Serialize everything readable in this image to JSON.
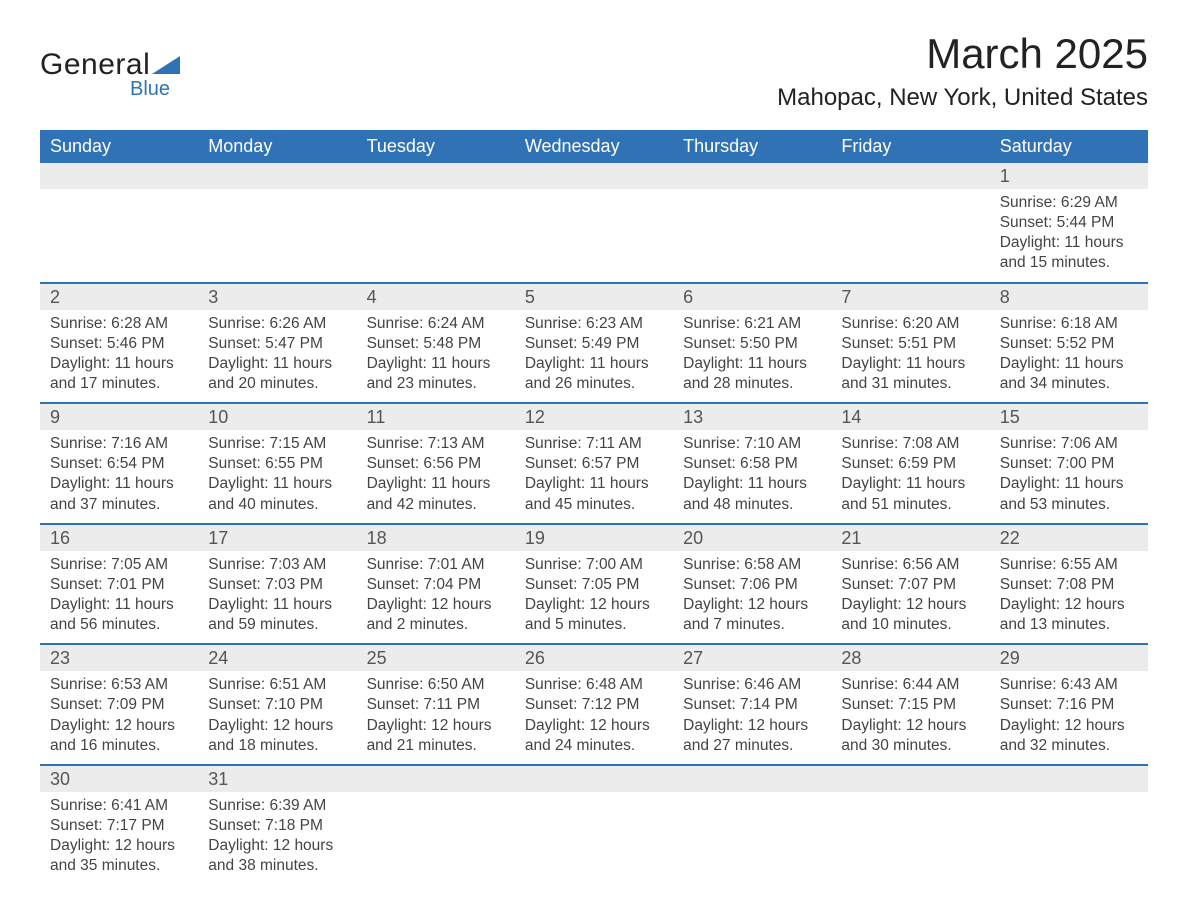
{
  "logo": {
    "top": "General",
    "bottom": "Blue",
    "shape_color": "#2f72b5",
    "text_color": "#222222"
  },
  "header": {
    "month": "March 2025",
    "location": "Mahopac, New York, United States"
  },
  "styling": {
    "header_bg": "#2f72b5",
    "header_fg": "#ffffff",
    "date_row_bg": "#ececec",
    "body_bg": "#ffffff",
    "week_divider": "#2f72b5",
    "body_fontsize": 15.5,
    "header_fontsize": 18,
    "title_fontsize": 42,
    "subtitle_fontsize": 24,
    "date_color": "#555555",
    "text_color": "#444444"
  },
  "day_headers": [
    "Sunday",
    "Monday",
    "Tuesday",
    "Wednesday",
    "Thursday",
    "Friday",
    "Saturday"
  ],
  "weeks": [
    [
      {
        "d": "",
        "sr": "",
        "ss": "",
        "dl1": "",
        "dl2": ""
      },
      {
        "d": "",
        "sr": "",
        "ss": "",
        "dl1": "",
        "dl2": ""
      },
      {
        "d": "",
        "sr": "",
        "ss": "",
        "dl1": "",
        "dl2": ""
      },
      {
        "d": "",
        "sr": "",
        "ss": "",
        "dl1": "",
        "dl2": ""
      },
      {
        "d": "",
        "sr": "",
        "ss": "",
        "dl1": "",
        "dl2": ""
      },
      {
        "d": "",
        "sr": "",
        "ss": "",
        "dl1": "",
        "dl2": ""
      },
      {
        "d": "1",
        "sr": "Sunrise: 6:29 AM",
        "ss": "Sunset: 5:44 PM",
        "dl1": "Daylight: 11 hours",
        "dl2": "and 15 minutes."
      }
    ],
    [
      {
        "d": "2",
        "sr": "Sunrise: 6:28 AM",
        "ss": "Sunset: 5:46 PM",
        "dl1": "Daylight: 11 hours",
        "dl2": "and 17 minutes."
      },
      {
        "d": "3",
        "sr": "Sunrise: 6:26 AM",
        "ss": "Sunset: 5:47 PM",
        "dl1": "Daylight: 11 hours",
        "dl2": "and 20 minutes."
      },
      {
        "d": "4",
        "sr": "Sunrise: 6:24 AM",
        "ss": "Sunset: 5:48 PM",
        "dl1": "Daylight: 11 hours",
        "dl2": "and 23 minutes."
      },
      {
        "d": "5",
        "sr": "Sunrise: 6:23 AM",
        "ss": "Sunset: 5:49 PM",
        "dl1": "Daylight: 11 hours",
        "dl2": "and 26 minutes."
      },
      {
        "d": "6",
        "sr": "Sunrise: 6:21 AM",
        "ss": "Sunset: 5:50 PM",
        "dl1": "Daylight: 11 hours",
        "dl2": "and 28 minutes."
      },
      {
        "d": "7",
        "sr": "Sunrise: 6:20 AM",
        "ss": "Sunset: 5:51 PM",
        "dl1": "Daylight: 11 hours",
        "dl2": "and 31 minutes."
      },
      {
        "d": "8",
        "sr": "Sunrise: 6:18 AM",
        "ss": "Sunset: 5:52 PM",
        "dl1": "Daylight: 11 hours",
        "dl2": "and 34 minutes."
      }
    ],
    [
      {
        "d": "9",
        "sr": "Sunrise: 7:16 AM",
        "ss": "Sunset: 6:54 PM",
        "dl1": "Daylight: 11 hours",
        "dl2": "and 37 minutes."
      },
      {
        "d": "10",
        "sr": "Sunrise: 7:15 AM",
        "ss": "Sunset: 6:55 PM",
        "dl1": "Daylight: 11 hours",
        "dl2": "and 40 minutes."
      },
      {
        "d": "11",
        "sr": "Sunrise: 7:13 AM",
        "ss": "Sunset: 6:56 PM",
        "dl1": "Daylight: 11 hours",
        "dl2": "and 42 minutes."
      },
      {
        "d": "12",
        "sr": "Sunrise: 7:11 AM",
        "ss": "Sunset: 6:57 PM",
        "dl1": "Daylight: 11 hours",
        "dl2": "and 45 minutes."
      },
      {
        "d": "13",
        "sr": "Sunrise: 7:10 AM",
        "ss": "Sunset: 6:58 PM",
        "dl1": "Daylight: 11 hours",
        "dl2": "and 48 minutes."
      },
      {
        "d": "14",
        "sr": "Sunrise: 7:08 AM",
        "ss": "Sunset: 6:59 PM",
        "dl1": "Daylight: 11 hours",
        "dl2": "and 51 minutes."
      },
      {
        "d": "15",
        "sr": "Sunrise: 7:06 AM",
        "ss": "Sunset: 7:00 PM",
        "dl1": "Daylight: 11 hours",
        "dl2": "and 53 minutes."
      }
    ],
    [
      {
        "d": "16",
        "sr": "Sunrise: 7:05 AM",
        "ss": "Sunset: 7:01 PM",
        "dl1": "Daylight: 11 hours",
        "dl2": "and 56 minutes."
      },
      {
        "d": "17",
        "sr": "Sunrise: 7:03 AM",
        "ss": "Sunset: 7:03 PM",
        "dl1": "Daylight: 11 hours",
        "dl2": "and 59 minutes."
      },
      {
        "d": "18",
        "sr": "Sunrise: 7:01 AM",
        "ss": "Sunset: 7:04 PM",
        "dl1": "Daylight: 12 hours",
        "dl2": "and 2 minutes."
      },
      {
        "d": "19",
        "sr": "Sunrise: 7:00 AM",
        "ss": "Sunset: 7:05 PM",
        "dl1": "Daylight: 12 hours",
        "dl2": "and 5 minutes."
      },
      {
        "d": "20",
        "sr": "Sunrise: 6:58 AM",
        "ss": "Sunset: 7:06 PM",
        "dl1": "Daylight: 12 hours",
        "dl2": "and 7 minutes."
      },
      {
        "d": "21",
        "sr": "Sunrise: 6:56 AM",
        "ss": "Sunset: 7:07 PM",
        "dl1": "Daylight: 12 hours",
        "dl2": "and 10 minutes."
      },
      {
        "d": "22",
        "sr": "Sunrise: 6:55 AM",
        "ss": "Sunset: 7:08 PM",
        "dl1": "Daylight: 12 hours",
        "dl2": "and 13 minutes."
      }
    ],
    [
      {
        "d": "23",
        "sr": "Sunrise: 6:53 AM",
        "ss": "Sunset: 7:09 PM",
        "dl1": "Daylight: 12 hours",
        "dl2": "and 16 minutes."
      },
      {
        "d": "24",
        "sr": "Sunrise: 6:51 AM",
        "ss": "Sunset: 7:10 PM",
        "dl1": "Daylight: 12 hours",
        "dl2": "and 18 minutes."
      },
      {
        "d": "25",
        "sr": "Sunrise: 6:50 AM",
        "ss": "Sunset: 7:11 PM",
        "dl1": "Daylight: 12 hours",
        "dl2": "and 21 minutes."
      },
      {
        "d": "26",
        "sr": "Sunrise: 6:48 AM",
        "ss": "Sunset: 7:12 PM",
        "dl1": "Daylight: 12 hours",
        "dl2": "and 24 minutes."
      },
      {
        "d": "27",
        "sr": "Sunrise: 6:46 AM",
        "ss": "Sunset: 7:14 PM",
        "dl1": "Daylight: 12 hours",
        "dl2": "and 27 minutes."
      },
      {
        "d": "28",
        "sr": "Sunrise: 6:44 AM",
        "ss": "Sunset: 7:15 PM",
        "dl1": "Daylight: 12 hours",
        "dl2": "and 30 minutes."
      },
      {
        "d": "29",
        "sr": "Sunrise: 6:43 AM",
        "ss": "Sunset: 7:16 PM",
        "dl1": "Daylight: 12 hours",
        "dl2": "and 32 minutes."
      }
    ],
    [
      {
        "d": "30",
        "sr": "Sunrise: 6:41 AM",
        "ss": "Sunset: 7:17 PM",
        "dl1": "Daylight: 12 hours",
        "dl2": "and 35 minutes."
      },
      {
        "d": "31",
        "sr": "Sunrise: 6:39 AM",
        "ss": "Sunset: 7:18 PM",
        "dl1": "Daylight: 12 hours",
        "dl2": "and 38 minutes."
      },
      {
        "d": "",
        "sr": "",
        "ss": "",
        "dl1": "",
        "dl2": ""
      },
      {
        "d": "",
        "sr": "",
        "ss": "",
        "dl1": "",
        "dl2": ""
      },
      {
        "d": "",
        "sr": "",
        "ss": "",
        "dl1": "",
        "dl2": ""
      },
      {
        "d": "",
        "sr": "",
        "ss": "",
        "dl1": "",
        "dl2": ""
      },
      {
        "d": "",
        "sr": "",
        "ss": "",
        "dl1": "",
        "dl2": ""
      }
    ]
  ]
}
